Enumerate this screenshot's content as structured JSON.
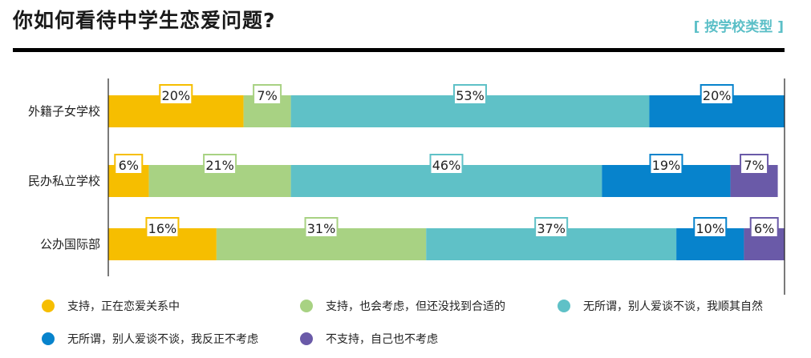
{
  "header": {
    "title": "你如何看待中学生恋爱问题?",
    "tag": "[ 按学校类型 ]",
    "tag_color": "#5bbfc7"
  },
  "chart_data": {
    "type": "bar",
    "stacked": true,
    "orientation": "horizontal",
    "categories": [
      "外籍子女学校",
      "民办私立学校",
      "公办国际部"
    ],
    "series": [
      {
        "name": "支持，正在恋爱关系中",
        "color": "#f6be00",
        "values": [
          20,
          6,
          16
        ]
      },
      {
        "name": "支持，也会考虑，但还没找到合适的",
        "color": "#a8d283",
        "values": [
          7,
          21,
          31
        ]
      },
      {
        "name": "无所谓，别人爱谈不谈，我顺其自然",
        "color": "#5fc1c7",
        "values": [
          53,
          46,
          37
        ]
      },
      {
        "name": "无所谓，别人爱谈不谈，我反正不考虑",
        "color": "#0783cc",
        "values": [
          20,
          19,
          10
        ]
      },
      {
        "name": "不支持，自己也不考虑",
        "color": "#6a5aa8",
        "values": [
          0,
          7,
          6
        ]
      }
    ],
    "data_labels": [
      [
        "20%",
        "7%",
        "53%",
        "20%",
        ""
      ],
      [
        "6%",
        "21%",
        "46%",
        "19%",
        "7%"
      ],
      [
        "16%",
        "31%",
        "37%",
        "10%",
        "6%"
      ]
    ],
    "xlim": [
      0,
      100
    ],
    "legend_position": "bottom"
  }
}
